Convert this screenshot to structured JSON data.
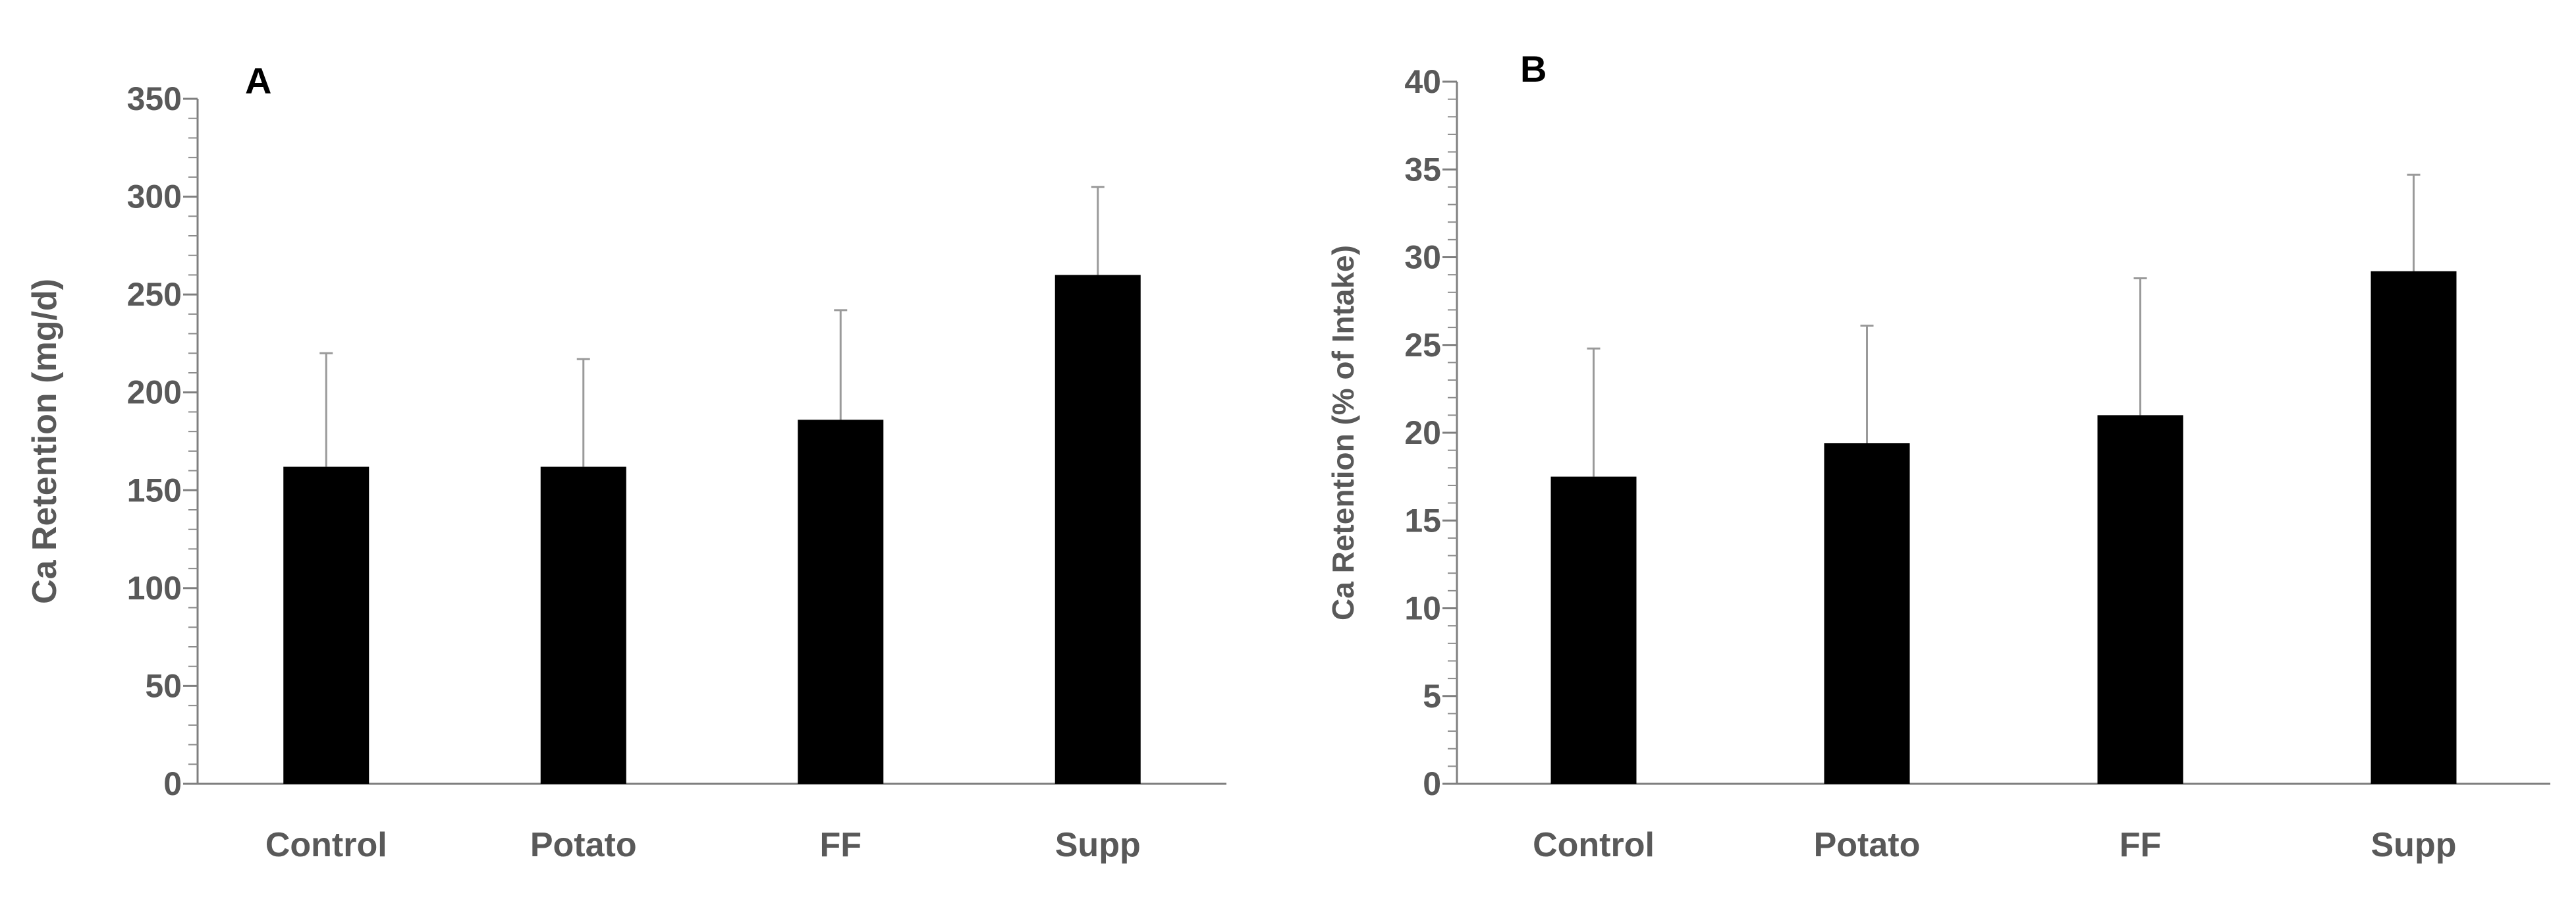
{
  "chart_data": [
    {
      "type": "bar",
      "panel_label": "A",
      "title": "",
      "xlabel": "",
      "ylabel": "Ca Retention (mg/d)",
      "categories": [
        "Control",
        "Potato",
        "FF",
        "Supp"
      ],
      "values": [
        162,
        162,
        186,
        260
      ],
      "error_upper": [
        220,
        217,
        242,
        305
      ],
      "ylim": [
        0,
        350
      ],
      "major_ticks": [
        0,
        50,
        100,
        150,
        200,
        250,
        300,
        350
      ],
      "minor_step": 10,
      "grid": false,
      "bar_color": "#000000"
    },
    {
      "type": "bar",
      "panel_label": "B",
      "title": "",
      "xlabel": "",
      "ylabel": "Ca Retention (% of Intake)",
      "categories": [
        "Control",
        "Potato",
        "FF",
        "Supp"
      ],
      "values": [
        17.5,
        19.4,
        21.0,
        29.2
      ],
      "error_upper": [
        24.8,
        26.1,
        28.8,
        34.7
      ],
      "ylim": [
        0,
        40
      ],
      "major_ticks": [
        0,
        5,
        10,
        15,
        20,
        25,
        30,
        35,
        40
      ],
      "minor_step": 1,
      "grid": false,
      "bar_color": "#000000"
    }
  ]
}
